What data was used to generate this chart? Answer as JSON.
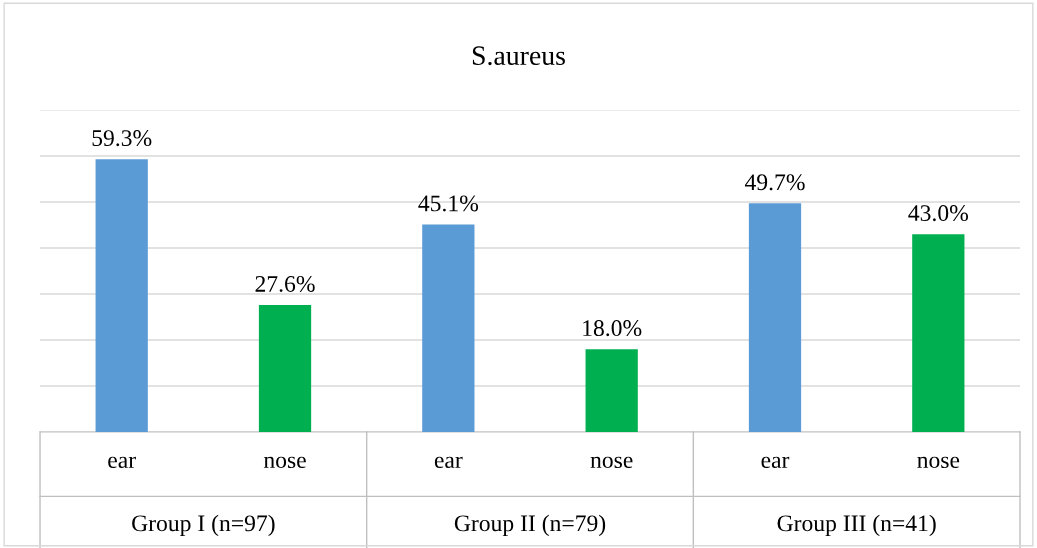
{
  "chart_data": {
    "type": "bar",
    "title": "S.aureus",
    "categories": [
      "ear",
      "nose",
      "ear",
      "nose",
      "ear",
      "nose"
    ],
    "annotations": [
      "Group I (n=97)",
      "Group II (n=79)",
      "Group III (n=41)"
    ],
    "values": [
      59.3,
      27.6,
      45.1,
      18.0,
      49.7,
      43.0
    ],
    "colors": [
      "#5b9bd5",
      "#00b050",
      "#5b9bd5",
      "#00b050",
      "#5b9bd5",
      "#00b050"
    ],
    "value_labels": [
      "59.3%",
      "27.6%",
      "45.1%",
      "18.0%",
      "49.7%",
      "43.0%"
    ],
    "ylim": [
      0,
      70
    ],
    "yticks": [
      {
        "value": 0,
        "label": null
      },
      {
        "value": 10,
        "label": null
      },
      {
        "value": 20,
        "label": null
      },
      {
        "value": 30,
        "label": null
      },
      {
        "value": 40,
        "label": null
      },
      {
        "value": 50,
        "label": null
      },
      {
        "value": 60,
        "label": null
      },
      {
        "value": 70,
        "label": null
      }
    ],
    "grid": "y",
    "tick_labels": "x",
    "legend": false
  }
}
